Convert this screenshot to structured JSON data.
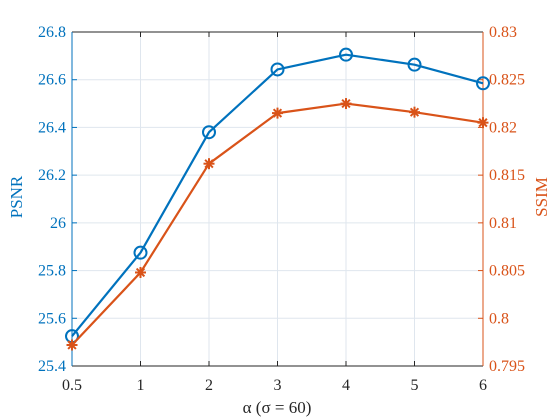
{
  "chart_data": {
    "type": "line",
    "categories": [
      "0.5",
      "1",
      "2",
      "3",
      "4",
      "5",
      "6"
    ],
    "series": [
      {
        "name": "PSNR",
        "axis": "left",
        "color": "#0072BD",
        "marker": "circle",
        "values": [
          25.525,
          25.875,
          26.38,
          26.643,
          26.705,
          26.663,
          26.585
        ]
      },
      {
        "name": "SSIM",
        "axis": "right",
        "color": "#D95319",
        "marker": "asterisk",
        "values": [
          0.7972,
          0.8048,
          0.8162,
          0.8215,
          0.8225,
          0.8216,
          0.8205
        ]
      }
    ],
    "xlabel": "α (σ = 60)",
    "ylabel_left": "PSNR",
    "ylabel_right": "SSIM",
    "ylim_left": [
      25.4,
      26.8
    ],
    "ylim_right": [
      0.795,
      0.83
    ],
    "yticks_left": [
      "25.4",
      "25.6",
      "25.8",
      "26",
      "26.2",
      "26.4",
      "26.6",
      "26.8"
    ],
    "yticks_right": [
      "0.795",
      "0.8",
      "0.805",
      "0.81",
      "0.815",
      "0.82",
      "0.825",
      "0.83"
    ],
    "grid": true,
    "colors": {
      "left_axis": "#0072BD",
      "right_axis": "#D95319",
      "x_axis": "#262626",
      "grid": "#dfe6ee"
    }
  }
}
